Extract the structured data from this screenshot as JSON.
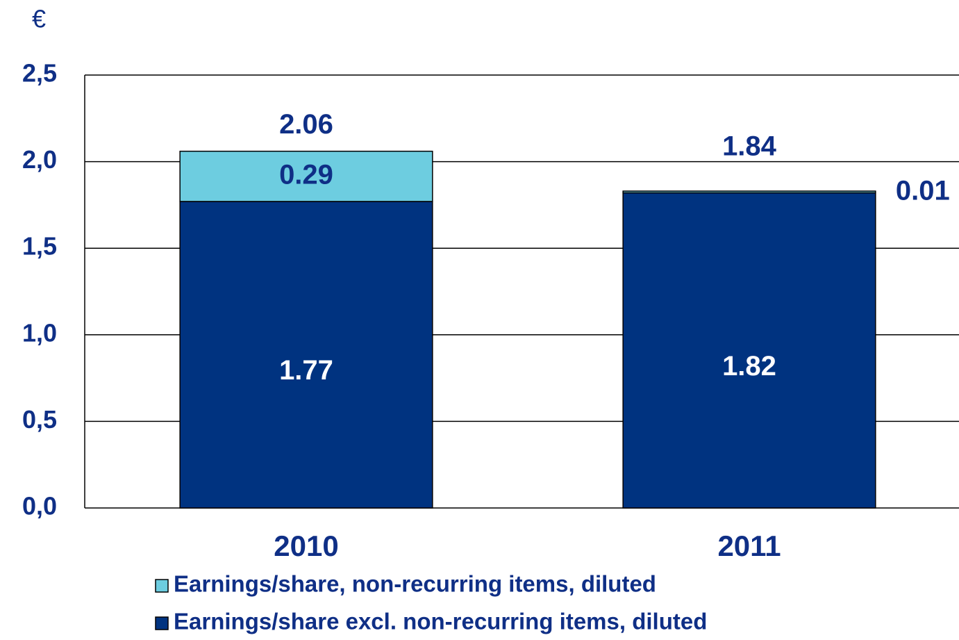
{
  "chart_data": {
    "type": "stacked_bar",
    "y_label": "€",
    "categories": [
      "2010",
      "2011"
    ],
    "series": [
      {
        "name": "Earnings/share excl. non-recurring items, diluted",
        "color": "#003380",
        "label_color": "#ffffff",
        "values": [
          1.77,
          1.82
        ]
      },
      {
        "name": "Earnings/share, non-recurring items, diluted",
        "color": "#6dcde0",
        "label_color": "#0f2f86",
        "values": [
          0.29,
          0.01
        ]
      }
    ],
    "totals": [
      2.06,
      1.84
    ],
    "ylim": [
      0,
      2.5
    ],
    "yticks": [
      {
        "value": 0,
        "label": "0,0"
      },
      {
        "value": 0.5,
        "label": "0,5"
      },
      {
        "value": 1,
        "label": "1,0"
      },
      {
        "value": 1.5,
        "label": "1,5"
      },
      {
        "value": 2,
        "label": "2,0"
      },
      {
        "value": 2.5,
        "label": "2,5"
      }
    ],
    "grid": true
  }
}
